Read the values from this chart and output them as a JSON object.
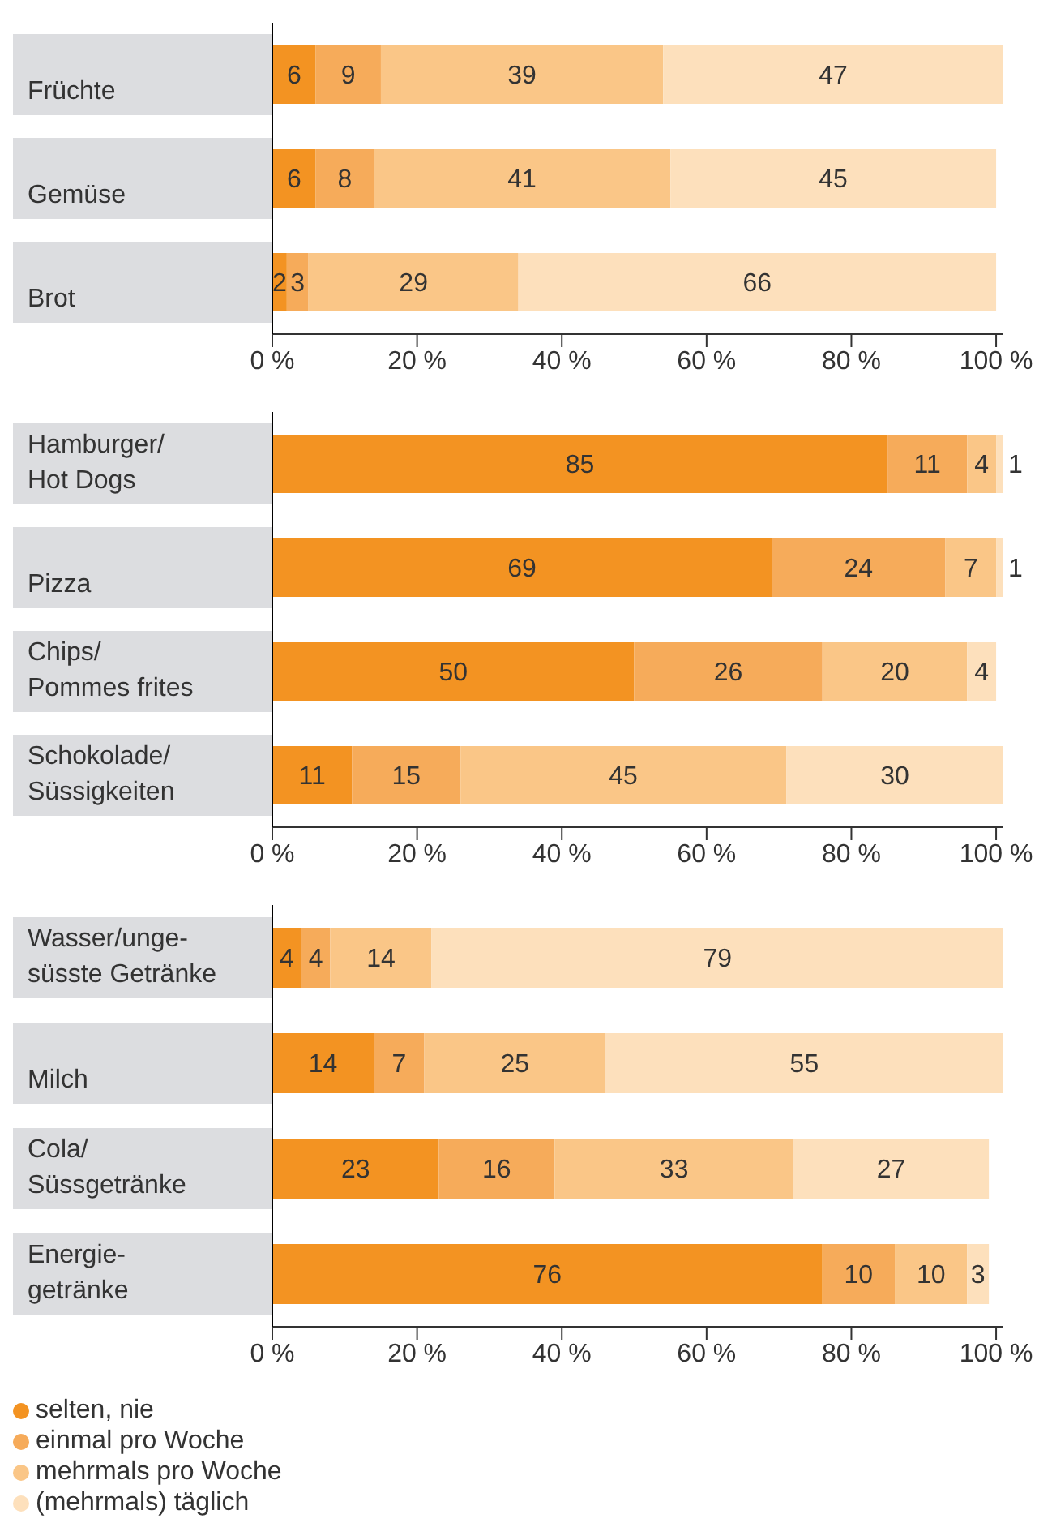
{
  "chart_data": [
    {
      "type": "bar",
      "orientation": "horizontal",
      "stacked": true,
      "data_labels": true,
      "categories": [
        "Früchte",
        "Gemüse",
        "Brot"
      ],
      "xlim": [
        0,
        101
      ],
      "xticks": [
        {
          "value": 0,
          "label": "0 %"
        },
        {
          "value": 20,
          "label": "20 %"
        },
        {
          "value": 40,
          "label": "40 %"
        },
        {
          "value": 60,
          "label": "60 %"
        },
        {
          "value": 80,
          "label": "80 %"
        },
        {
          "value": 100,
          "label": "100 %"
        }
      ],
      "series": [
        {
          "color": "#f39322",
          "values": [
            6,
            6,
            2
          ]
        },
        {
          "color": "#f6ab5a",
          "values": [
            9,
            8,
            3
          ]
        },
        {
          "color": "#fac687",
          "values": [
            39,
            41,
            29
          ]
        },
        {
          "color": "#fde0bc",
          "values": [
            47,
            45,
            66
          ]
        }
      ]
    },
    {
      "type": "bar",
      "orientation": "horizontal",
      "stacked": true,
      "data_labels": true,
      "categories": [
        "Hamburger/\nHot Dogs",
        "Pizza",
        "Chips/\nPommes frites",
        "Schokolade/\nSüssigkeiten"
      ],
      "xlim": [
        0,
        101
      ],
      "xticks": [
        {
          "value": 0,
          "label": "0 %"
        },
        {
          "value": 20,
          "label": "20 %"
        },
        {
          "value": 40,
          "label": "40 %"
        },
        {
          "value": 60,
          "label": "60 %"
        },
        {
          "value": 80,
          "label": "80 %"
        },
        {
          "value": 100,
          "label": "100 %"
        }
      ],
      "series": [
        {
          "color": "#f39322",
          "values": [
            85,
            69,
            50,
            11
          ]
        },
        {
          "color": "#f6ab5a",
          "values": [
            11,
            24,
            26,
            15
          ]
        },
        {
          "color": "#fac687",
          "values": [
            4,
            7,
            20,
            45
          ]
        },
        {
          "color": "#fde0bc",
          "values": [
            1,
            1,
            4,
            30
          ]
        }
      ]
    },
    {
      "type": "bar",
      "orientation": "horizontal",
      "stacked": true,
      "data_labels": true,
      "legend": "bottom left",
      "categories": [
        "Wasser/unge-\nsüsste Getränke",
        "Milch",
        "Cola/\nSüssgetränke",
        "Energie-\ngetränke"
      ],
      "xlim": [
        0,
        101
      ],
      "xticks": [
        {
          "value": 0,
          "label": "0 %"
        },
        {
          "value": 20,
          "label": "20 %"
        },
        {
          "value": 40,
          "label": "40 %"
        },
        {
          "value": 60,
          "label": "60 %"
        },
        {
          "value": 80,
          "label": "80 %"
        },
        {
          "value": 100,
          "label": "100 %"
        }
      ],
      "series": [
        {
          "name": "selten, nie",
          "color": "#f39322",
          "values": [
            4,
            14,
            23,
            76
          ]
        },
        {
          "name": "einmal pro Woche",
          "color": "#f6ab5a",
          "values": [
            4,
            7,
            16,
            10
          ]
        },
        {
          "name": "mehrmals pro Woche",
          "color": "#fac687",
          "values": [
            14,
            25,
            33,
            10
          ]
        },
        {
          "name": "(mehrmals) täglich",
          "color": "#fde0bc",
          "values": [
            79,
            55,
            27,
            3
          ]
        }
      ]
    }
  ]
}
